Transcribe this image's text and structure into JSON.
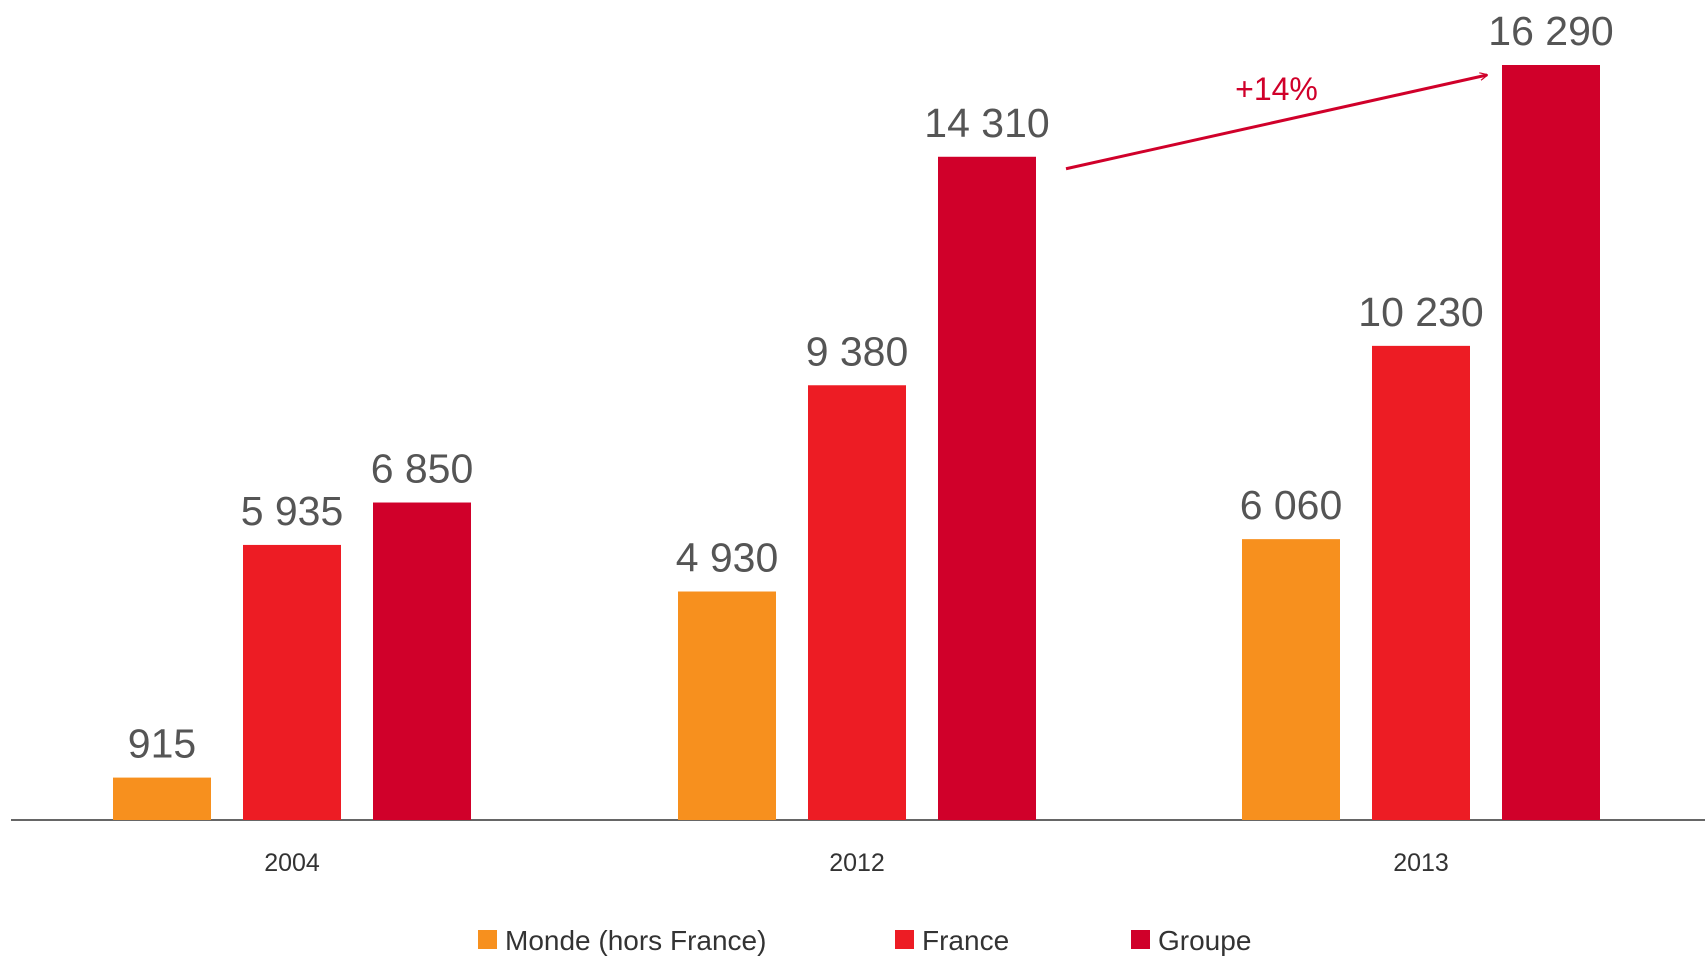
{
  "chart_data": {
    "type": "bar",
    "categories": [
      "2004",
      "2012",
      "2013"
    ],
    "series": [
      {
        "name": "Monde (hors France)",
        "color": "#f7901e",
        "values": [
          915,
          4930,
          6060
        ],
        "value_labels": [
          "915",
          "4 930",
          "6 060"
        ]
      },
      {
        "name": "France",
        "color": "#ed1c24",
        "values": [
          5935,
          9380,
          10230
        ],
        "value_labels": [
          "5 935",
          "9 380",
          "10 230"
        ]
      },
      {
        "name": "Groupe",
        "color": "#d0002a",
        "values": [
          6850,
          14310,
          16290
        ],
        "value_labels": [
          "6 850",
          "14 310",
          "16 290"
        ]
      }
    ],
    "annotation": "+14%",
    "annotation_color": "#d0002a"
  }
}
